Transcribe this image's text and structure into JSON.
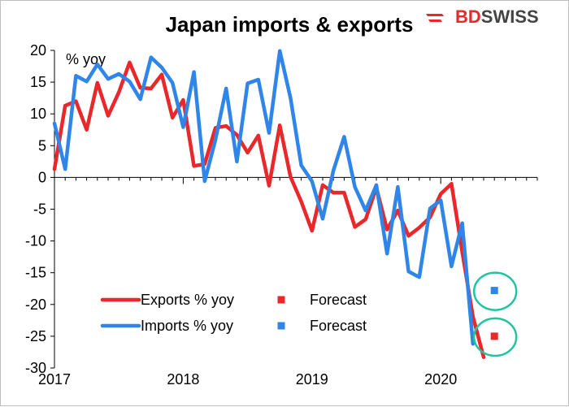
{
  "chart_data": {
    "type": "line",
    "title": "Japan imports & exports",
    "ylabel": "% yoy",
    "xlabel": "",
    "ylim": [
      -30,
      20
    ],
    "yticks": [
      20,
      15,
      10,
      5,
      0,
      -5,
      -10,
      -15,
      -20,
      -25,
      -30
    ],
    "xlim": [
      2017.0,
      2020.75
    ],
    "xticks": [
      {
        "value": 2017,
        "label": "2017"
      },
      {
        "value": 2018,
        "label": "2018"
      },
      {
        "value": 2019,
        "label": "2019"
      },
      {
        "value": 2020,
        "label": "2020"
      }
    ],
    "grid": false,
    "series": [
      {
        "name": "Exports % yoy",
        "color": "#e8282b",
        "start": 2017.0,
        "step_months": 1,
        "values": [
          1.3,
          11.3,
          12.0,
          7.5,
          14.9,
          9.7,
          13.4,
          18.1,
          14.1,
          14.0,
          16.2,
          9.4,
          12.2,
          1.8,
          2.1,
          7.8,
          8.1,
          6.7,
          3.9,
          6.6,
          -1.3,
          8.2,
          0.1,
          -3.8,
          -8.4,
          -1.2,
          -2.4,
          -2.4,
          -7.8,
          -6.6,
          -1.6,
          -8.2,
          -5.2,
          -9.2,
          -7.9,
          -6.3,
          -2.6,
          -1.0,
          -11.7,
          -21.9,
          -28.3
        ]
      },
      {
        "name": "Imports % yoy",
        "color": "#2f86e8",
        "start": 2017.0,
        "step_months": 1,
        "values": [
          8.5,
          1.3,
          16.0,
          15.1,
          17.8,
          15.5,
          16.3,
          15.1,
          12.3,
          18.9,
          17.3,
          14.9,
          7.9,
          16.6,
          -0.6,
          5.9,
          14.0,
          2.5,
          14.8,
          15.4,
          7.0,
          19.9,
          12.5,
          1.9,
          -0.6,
          -6.5,
          1.1,
          6.4,
          -1.5,
          -5.2,
          -1.2,
          -12.0,
          -1.5,
          -14.8,
          -15.7,
          -4.9,
          -3.6,
          -14.0,
          -7.2,
          -26.2
        ]
      }
    ],
    "forecasts": [
      {
        "name": "Exports forecast",
        "x": 2020.4167,
        "y": -25.0,
        "color": "#e8282b"
      },
      {
        "name": "Imports forecast",
        "x": 2020.4167,
        "y": -17.8,
        "color": "#2f86e8"
      }
    ],
    "legend": {
      "placement": "bottom-left",
      "entries": [
        {
          "label": "Exports % yoy",
          "marker": "line",
          "color": "#e8282b"
        },
        {
          "label": "Forecast",
          "marker": "square",
          "color": "#e8282b"
        },
        {
          "label": "Imports % yoy",
          "marker": "line",
          "color": "#2f86e8"
        },
        {
          "label": "Forecast",
          "marker": "square",
          "color": "#2f86e8"
        }
      ]
    },
    "highlight_color": "#22c4a0"
  },
  "brand": {
    "name": "BDSWISS",
    "part1": "BD",
    "part2": "SWISS",
    "part1_color": "#e8282b",
    "part2_color": "#444444"
  }
}
